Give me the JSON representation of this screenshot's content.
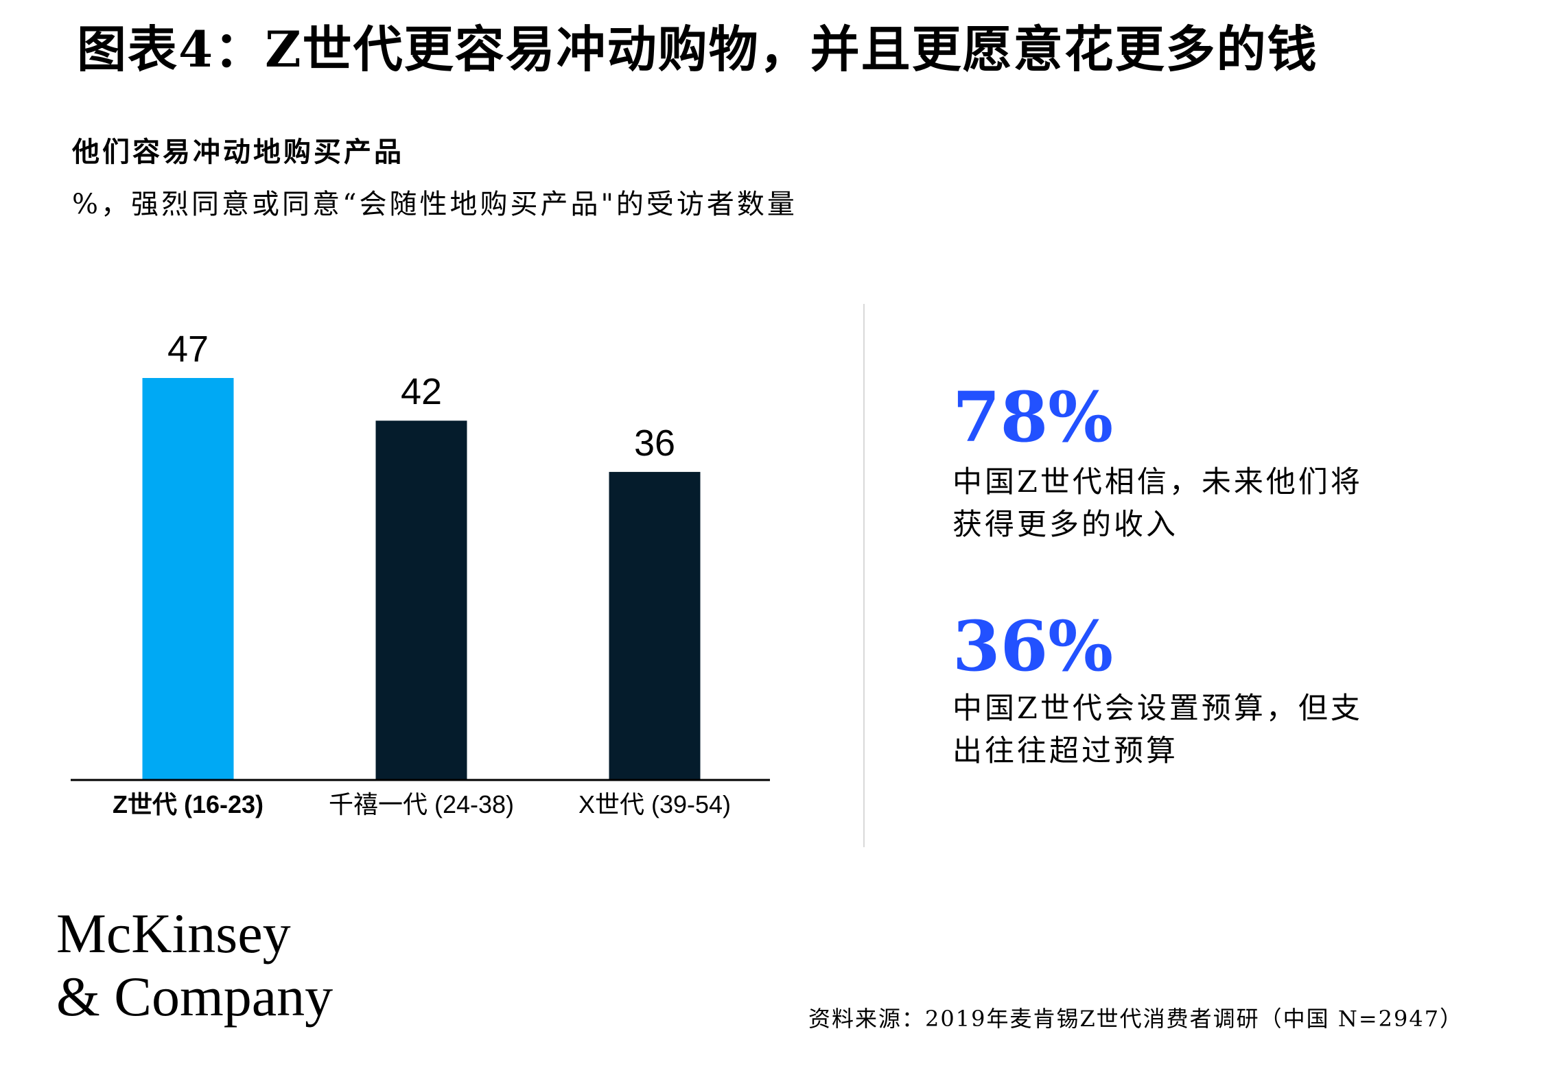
{
  "title": "图表4：Z世代更容易冲动购物，并且更愿意花更多的钱",
  "subtitle": "他们容易冲动地购买产品",
  "unit_note": "%，强烈同意或同意“会随性地购买产品\"的受访者数量",
  "chart_data": {
    "type": "bar",
    "categories": [
      "Z世代 (16-23)",
      "千禧一代 (24-38)",
      "X世代 (39-54)"
    ],
    "values": [
      47,
      42,
      36
    ],
    "colors": [
      "#00a9f4",
      "#051c2c",
      "#051c2c"
    ],
    "highlight_category_bold": [
      true,
      false,
      false
    ],
    "ylim": [
      0,
      47
    ]
  },
  "stats": [
    {
      "value": "78%",
      "desc_line1": "中国Z世代相信，未来他们将",
      "desc_line2": "获得更多的收入"
    },
    {
      "value": "36%",
      "desc_line1": "中国Z世代会设置预算，但支",
      "desc_line2": "出往往超过预算"
    }
  ],
  "logo": {
    "line1": "McKinsey",
    "line2": "& Company"
  },
  "source": "资料来源：2019年麦肯锡Z世代消费者调研（中国 N=2947）",
  "colors": {
    "accent": "#2251ff",
    "highlight_bar": "#00a9f4",
    "dark_bar": "#051c2c"
  }
}
